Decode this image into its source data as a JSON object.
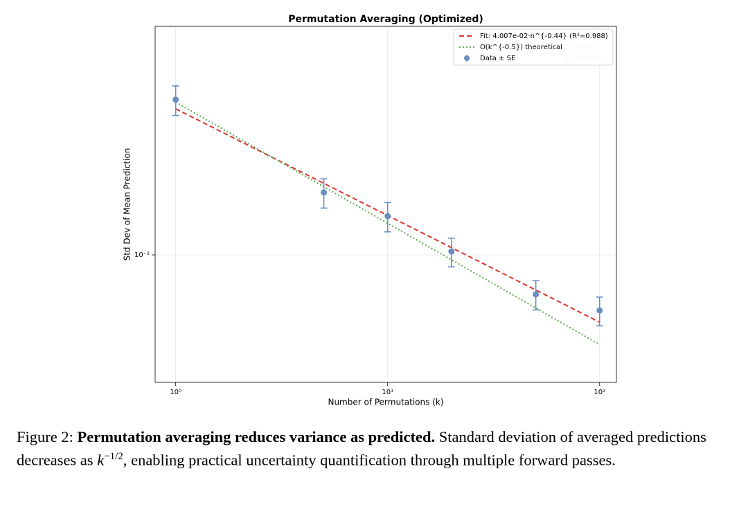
{
  "chart_data": {
    "type": "scatter",
    "title": "Permutation Averaging (Optimized)",
    "xlabel": "Number of Permutations (k)",
    "ylabel": "Std Dev of Mean Prediction",
    "xscale": "log",
    "yscale": "log",
    "grid": true,
    "legend": "upper right",
    "xlim": [
      0.8,
      120
    ],
    "ylim": [
      0.00298,
      0.0877
    ],
    "xticks": [
      {
        "value": 1,
        "label": "10⁰"
      },
      {
        "value": 10,
        "label": "10¹"
      },
      {
        "value": 100,
        "label": "10²"
      }
    ],
    "yticks": [
      {
        "value": 0.01,
        "label": "10⁻²"
      }
    ],
    "series": [
      {
        "name": "Fit: 4.007e-02·n^{-0.44} (R²=0.988)",
        "kind": "line",
        "style": "dashed",
        "color": "#e0332c",
        "x": [
          1,
          100
        ],
        "values": [
          0.04007,
          0.00528
        ]
      },
      {
        "name": "O(k^{-0.5}) theoretical",
        "kind": "line",
        "style": "dotted",
        "color": "#5aa84a",
        "x": [
          1,
          100
        ],
        "values": [
          0.0427,
          0.00427
        ]
      },
      {
        "name": "Data ± SE",
        "kind": "errorbar",
        "color": "#6a8fbf",
        "x": [
          1,
          5,
          10,
          20,
          50,
          100
        ],
        "values": [
          0.0437,
          0.0181,
          0.01445,
          0.01033,
          0.00688,
          0.0059
        ],
        "errors": [
          0.0061,
          0.0025,
          0.002,
          0.0014,
          0.00095,
          0.0008
        ]
      }
    ],
    "annotations": [
      "0.439",
      "R² = 0.988"
    ]
  },
  "caption": {
    "label": "Figure 2:",
    "bold": "Permutation averaging reduces variance as predicted.",
    "text1": "Standard deviation of averaged predictions decreases as ",
    "math": "k",
    "exponent": "−1/2",
    "text2": ", enabling practical uncertainty quantification through multiple forward passes."
  }
}
